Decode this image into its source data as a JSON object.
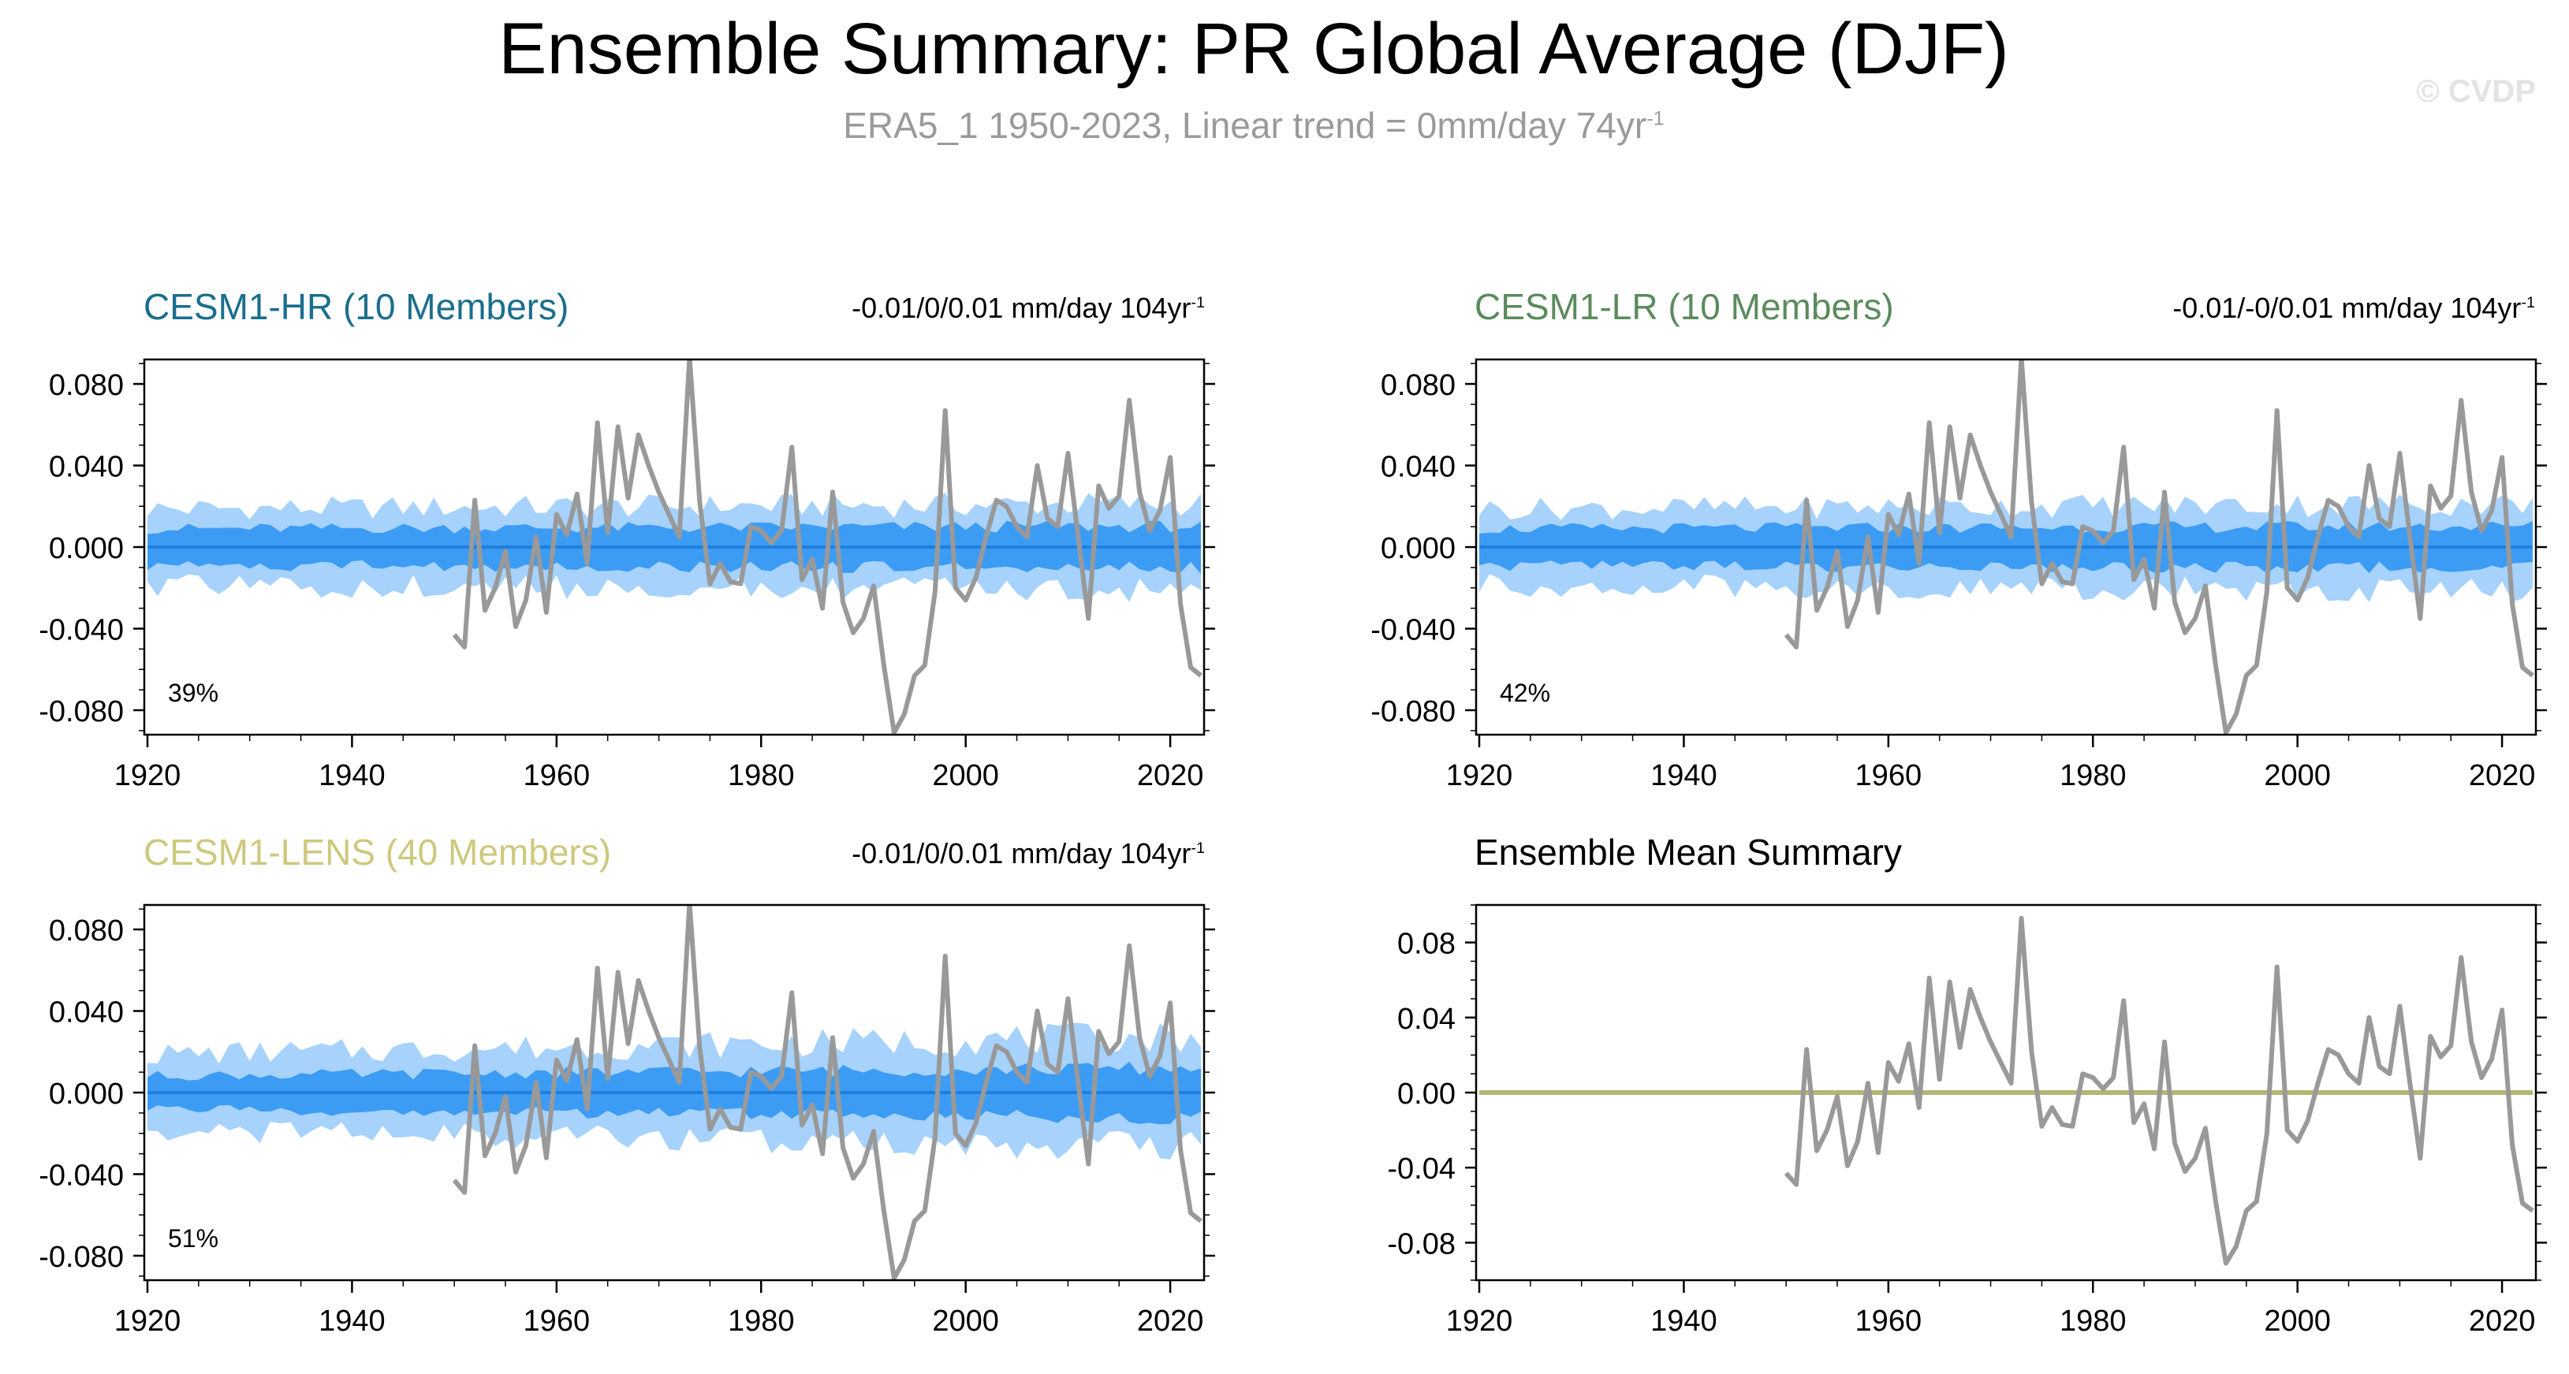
{
  "title": "Ensemble Summary: PR Global Average (DJF)",
  "subtitle": {
    "text": "ERA5_1 1950-2023, Linear trend = 0mm/day 74yr",
    "superscript": "-1"
  },
  "watermark": "© CVDP",
  "colors": {
    "obs_line": "#999999",
    "band_outer": "#a6d2fb",
    "band_inner": "#3c9cf4",
    "ens_mean_line": "#1f7fde",
    "summary_zero_line": "#b5b574",
    "hr_title": "#1a6e8e",
    "lr_title": "#5b8b5c",
    "lens_title": "#cdc97d"
  },
  "observations": {
    "years": [
      1950,
      1951,
      1952,
      1953,
      1954,
      1955,
      1956,
      1957,
      1958,
      1959,
      1960,
      1961,
      1962,
      1963,
      1964,
      1965,
      1966,
      1967,
      1968,
      1969,
      1970,
      1971,
      1972,
      1973,
      1974,
      1975,
      1976,
      1977,
      1978,
      1979,
      1980,
      1981,
      1982,
      1983,
      1984,
      1985,
      1986,
      1987,
      1988,
      1989,
      1990,
      1991,
      1992,
      1993,
      1994,
      1995,
      1996,
      1997,
      1998,
      1999,
      2000,
      2001,
      2002,
      2003,
      2004,
      2005,
      2006,
      2007,
      2008,
      2009,
      2010,
      2011,
      2012,
      2013,
      2014,
      2015,
      2016,
      2017,
      2018,
      2019,
      2020,
      2021,
      2022,
      2023
    ],
    "values": [
      -0.043,
      -0.049,
      0.023,
      -0.031,
      -0.02,
      -0.002,
      -0.039,
      -0.026,
      0.005,
      -0.032,
      0.016,
      0.006,
      0.026,
      -0.008,
      0.061,
      0.007,
      0.059,
      0.024,
      0.055,
      0.04,
      0.027,
      0.016,
      0.005,
      0.093,
      0.022,
      -0.018,
      -0.008,
      -0.017,
      -0.018,
      0.01,
      0.008,
      0.002,
      0.008,
      0.049,
      -0.016,
      -0.006,
      -0.03,
      0.027,
      -0.027,
      -0.042,
      -0.035,
      -0.019,
      -0.058,
      -0.091,
      -0.082,
      -0.063,
      -0.058,
      -0.022,
      0.067,
      -0.02,
      -0.026,
      -0.015,
      0.005,
      0.023,
      0.02,
      0.01,
      0.005,
      0.04,
      0.014,
      0.01,
      0.046,
      0.005,
      -0.035,
      0.03,
      0.019,
      0.025,
      0.072,
      0.027,
      0.008,
      0.018,
      0.044,
      -0.028,
      -0.059,
      -0.063
    ]
  },
  "x_ticks": [
    "1920",
    "1940",
    "1960",
    "1980",
    "2000",
    "2020"
  ],
  "panels": [
    {
      "title": "CESM1-HR (10 Members)",
      "trend_text": "-0.01/0/0.01 mm/day 104yr",
      "trend_sup": "-1",
      "percent": "39%",
      "y_ticks": [
        "0.080",
        "0.040",
        "0.000",
        "-0.040",
        "-0.080"
      ]
    },
    {
      "title": "CESM1-LR (10 Members)",
      "trend_text": "-0.01/-0/0.01 mm/day 104yr",
      "trend_sup": "-1",
      "percent": "42%",
      "y_ticks": [
        "0.080",
        "0.040",
        "0.000",
        "-0.040",
        "-0.080"
      ]
    },
    {
      "title": "CESM1-LENS (40 Members)",
      "trend_text": "-0.01/0/0.01 mm/day 104yr",
      "trend_sup": "-1",
      "percent": "51%",
      "y_ticks": [
        "0.080",
        "0.040",
        "0.000",
        "-0.040",
        "-0.080"
      ]
    },
    {
      "title": "Ensemble Mean Summary",
      "y_ticks": [
        "0.08",
        "0.04",
        "0.00",
        "-0.04",
        "-0.08"
      ]
    }
  ],
  "chart_data": [
    {
      "type": "area",
      "title": "CESM1-HR (10 Members)",
      "x_range": [
        1920,
        2023
      ],
      "ylim": [
        -0.092,
        0.092
      ],
      "y_tick_values": [
        0.08,
        0.04,
        0.0,
        -0.04,
        -0.08
      ],
      "x_tick_values": [
        1920,
        1940,
        1960,
        1980,
        2000,
        2020
      ],
      "series": [
        {
          "name": "ensemble range (min-max)",
          "approx_half_width": 0.025
        },
        {
          "name": "ensemble interquartile range",
          "approx_half_width": 0.012
        },
        {
          "name": "ensemble mean",
          "value": 0.0
        },
        {
          "name": "ERA5_1 observations",
          "ref": "observations"
        }
      ]
    },
    {
      "type": "area",
      "title": "CESM1-LR (10 Members)",
      "x_range": [
        1920,
        2023
      ],
      "ylim": [
        -0.092,
        0.092
      ],
      "y_tick_values": [
        0.08,
        0.04,
        0.0,
        -0.04,
        -0.08
      ],
      "x_tick_values": [
        1920,
        1940,
        1960,
        1980,
        2000,
        2020
      ],
      "series": [
        {
          "name": "ensemble range (min-max)",
          "approx_half_width": 0.025
        },
        {
          "name": "ensemble interquartile range",
          "approx_half_width": 0.012
        },
        {
          "name": "ensemble mean",
          "value": 0.0
        },
        {
          "name": "ERA5_1 observations",
          "ref": "observations"
        }
      ]
    },
    {
      "type": "area",
      "title": "CESM1-LENS (40 Members)",
      "x_range": [
        1920,
        2023
      ],
      "ylim": [
        -0.092,
        0.092
      ],
      "y_tick_values": [
        0.08,
        0.04,
        0.0,
        -0.04,
        -0.08
      ],
      "x_tick_values": [
        1920,
        1940,
        1960,
        1980,
        2000,
        2020
      ],
      "series": [
        {
          "name": "ensemble range (min-max)",
          "approx_half_width": 0.025
        },
        {
          "name": "ensemble interquartile range",
          "approx_half_width": 0.011
        },
        {
          "name": "ensemble mean",
          "value": 0.0
        },
        {
          "name": "ERA5_1 observations",
          "ref": "observations"
        }
      ]
    },
    {
      "type": "line",
      "title": "Ensemble Mean Summary",
      "x_range": [
        1920,
        2023
      ],
      "ylim": [
        -0.1,
        0.1
      ],
      "y_tick_values": [
        0.08,
        0.04,
        0.0,
        -0.04,
        -0.08
      ],
      "x_tick_values": [
        1920,
        1940,
        1960,
        1980,
        2000,
        2020
      ],
      "series": [
        {
          "name": "ensemble means",
          "value": 0.0
        },
        {
          "name": "ERA5_1 observations",
          "ref": "observations"
        }
      ]
    }
  ]
}
